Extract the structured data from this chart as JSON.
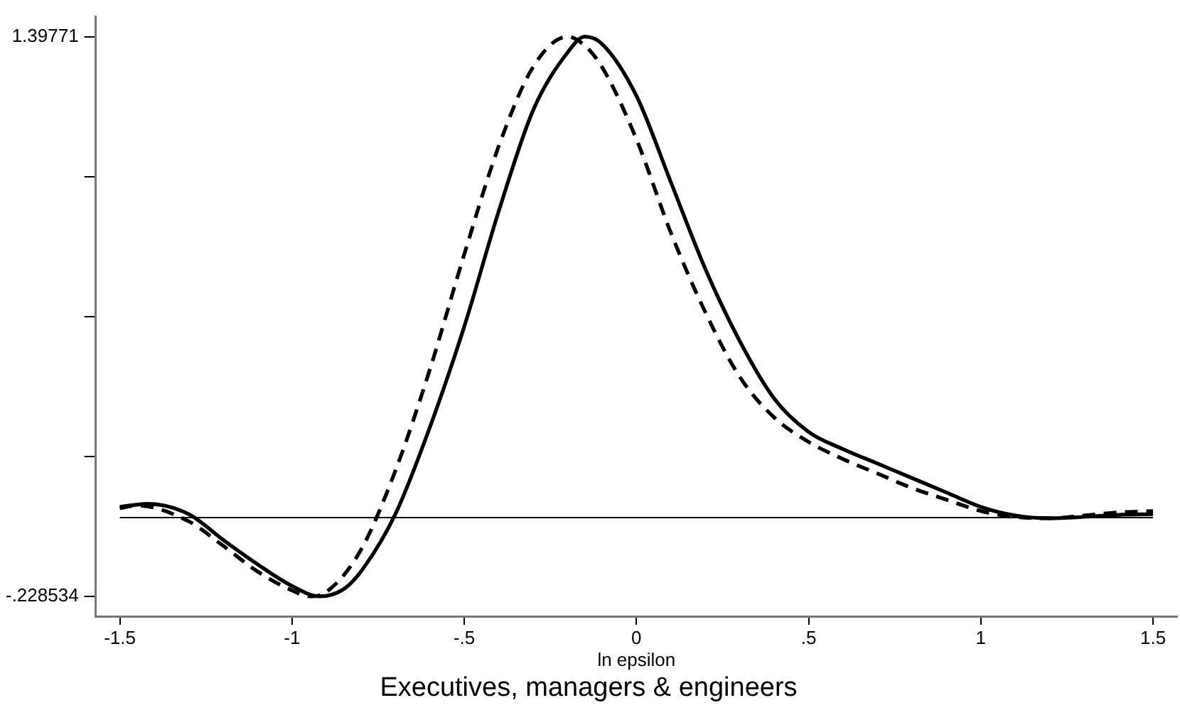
{
  "chart_data": {
    "type": "line",
    "title": "Executives, managers & engineers",
    "xlabel": "ln epsilon",
    "xlim": [
      -1.57,
      1.57
    ],
    "xticks": [
      {
        "value": -1.5,
        "label": "-1.5"
      },
      {
        "value": -1,
        "label": "-1"
      },
      {
        "value": -0.5,
        "label": "-.5"
      },
      {
        "value": 0,
        "label": "0"
      },
      {
        "value": 0.5,
        "label": ".5"
      },
      {
        "value": 1,
        "label": "1"
      },
      {
        "value": 1.5,
        "label": "1.5"
      }
    ],
    "ylim": [
      -0.287,
      1.456
    ],
    "yticks": [
      {
        "value": -0.228534,
        "label": "-.228534"
      },
      {
        "value": 0.178027,
        "label": null
      },
      {
        "value": 0.584588,
        "label": null
      },
      {
        "value": 0.991149,
        "label": null
      },
      {
        "value": 1.39771,
        "label": "1.39771"
      }
    ],
    "grid": false,
    "legend": false,
    "marker": "none",
    "ref_lines": [
      {
        "axis": "y",
        "value": 0,
        "color": "#000000",
        "line_style": "solid"
      }
    ],
    "series": [
      {
        "color": "#000000",
        "line_style": "solid",
        "x": [
          -1.5,
          -1.42,
          -1.3,
          -1.2,
          -1.1,
          -1,
          -0.92,
          -0.85,
          -0.8,
          -0.7,
          -0.6,
          -0.5,
          -0.4,
          -0.3,
          -0.2,
          -0.15,
          -0.1,
          0,
          0.1,
          0.2,
          0.3,
          0.4,
          0.5,
          0.6,
          0.7,
          0.8,
          0.9,
          1,
          1.1,
          1.2,
          1.3,
          1.4,
          1.5
        ],
        "values": [
          0.031,
          0.04,
          0.01,
          -0.065,
          -0.136,
          -0.199,
          -0.229,
          -0.208,
          -0.157,
          0.01,
          0.262,
          0.555,
          0.89,
          1.184,
          1.352,
          1.398,
          1.377,
          1.226,
          0.975,
          0.723,
          0.513,
          0.346,
          0.249,
          0.199,
          0.157,
          0.115,
          0.073,
          0.031,
          0.006,
          -0.002,
          0.002,
          0.008,
          0.01
        ]
      },
      {
        "color": "#000000",
        "line_style": "dashed",
        "x": [
          -1.5,
          -1.45,
          -1.3,
          -1.2,
          -1.1,
          -1,
          -0.95,
          -0.9,
          -0.8,
          -0.7,
          -0.6,
          -0.5,
          -0.4,
          -0.3,
          -0.2,
          -0.15,
          -0.1,
          0,
          0.1,
          0.2,
          0.3,
          0.4,
          0.5,
          0.6,
          0.7,
          0.8,
          0.9,
          1,
          1.1,
          1.2,
          1.3,
          1.4,
          1.5
        ],
        "values": [
          0.027,
          0.035,
          -0.011,
          -0.082,
          -0.157,
          -0.212,
          -0.229,
          -0.216,
          -0.094,
          0.136,
          0.43,
          0.765,
          1.079,
          1.31,
          1.398,
          1.372,
          1.31,
          1.1,
          0.828,
          0.597,
          0.409,
          0.291,
          0.22,
          0.17,
          0.128,
          0.086,
          0.052,
          0.019,
          0.002,
          -0.002,
          0.006,
          0.015,
          0.019
        ]
      }
    ]
  }
}
